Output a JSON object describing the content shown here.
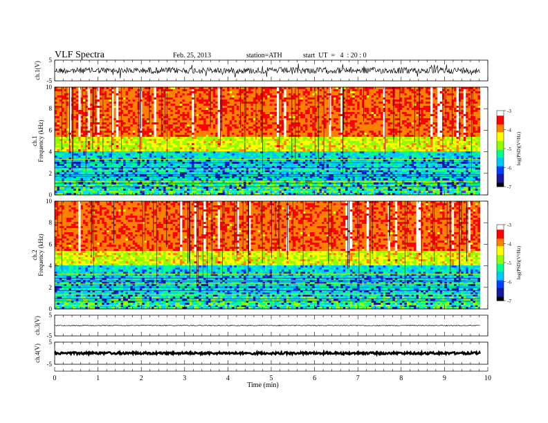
{
  "header": {
    "title": "VLF  Spectra",
    "date": "Feb. 25, 2013",
    "station": "station=ATH",
    "start": "start  UT  =   4  : 20 : 0"
  },
  "colors": {
    "spectrum": [
      "#000000",
      "#1818a0",
      "#0040ff",
      "#00c8ff",
      "#00ff90",
      "#90ff00",
      "#ffff00",
      "#ff8000",
      "#ff0000",
      "#ffffff"
    ]
  },
  "chart_data": [
    {
      "type": "line",
      "name": "waveform-ch1",
      "ylabel": "ch.1(V)",
      "ylim": [
        -5,
        5
      ],
      "yticks": [
        "5",
        "-5"
      ],
      "baseline": 0,
      "noise": "high"
    },
    {
      "type": "heatmap",
      "name": "spectrogram-ch1",
      "ylabel_top": "ch.1",
      "ylabel": "Frequency  (kHz)",
      "ylim": [
        0,
        10
      ],
      "yticks": [
        "0",
        "2",
        "4",
        "6",
        "8",
        "10"
      ]
    },
    {
      "type": "heatmap",
      "name": "spectrogram-ch2",
      "ylabel_top": "ch.2",
      "ylabel": "Frequency  (kHz)",
      "ylim": [
        0,
        10
      ],
      "yticks": [
        "0",
        "2",
        "4",
        "6",
        "8",
        "10"
      ]
    },
    {
      "type": "line",
      "name": "waveform-ch3",
      "ylabel": "ch.3(V)",
      "ylim": [
        -5,
        5
      ],
      "yticks": [
        "5",
        "-5"
      ],
      "baseline": 0,
      "noise": "low"
    },
    {
      "type": "line",
      "name": "waveform-ch4",
      "ylabel": "ch.4(V)",
      "ylim": [
        -5,
        5
      ],
      "yticks": [
        "5",
        "-5"
      ],
      "baseline": 0,
      "noise": "flat"
    }
  ],
  "colorbar": {
    "label": "log(PSD)(V²/Hz)",
    "ticks": [
      "-3",
      "-4",
      "-5",
      "-6",
      "-7"
    ],
    "range": [
      -7,
      -3
    ]
  },
  "xaxis": {
    "label": "Time  (min)",
    "ticks": [
      "0",
      "1",
      "2",
      "3",
      "4",
      "5",
      "6",
      "7",
      "8",
      "9",
      "10"
    ],
    "range": [
      0,
      10
    ],
    "data_end": 9.82
  }
}
